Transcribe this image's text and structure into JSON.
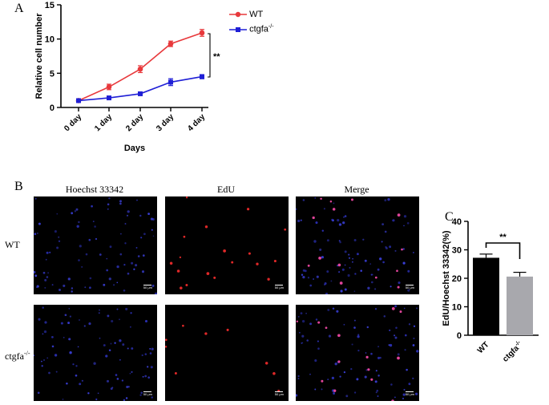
{
  "panel_a": {
    "letter": "A",
    "ylabel": "Relative cell number",
    "xlabel": "Days",
    "significance": "**",
    "legend": [
      {
        "label": "WT",
        "superscript": "",
        "color": "#e8393c",
        "marker": "circle"
      },
      {
        "label": "ctgfa",
        "superscript": "-/-",
        "color": "#1f1fd6",
        "marker": "square"
      }
    ]
  },
  "panel_b": {
    "letter": "B",
    "columns": [
      "Hoechst 33342",
      "EdU",
      "Merge"
    ],
    "rows": [
      {
        "label": "WT",
        "superscript": ""
      },
      {
        "label": "ctgfa",
        "superscript": "-/-"
      }
    ],
    "scale_text": "50 μm"
  },
  "panel_c": {
    "letter": "C",
    "ylabel": "EdU/Hoechst 33342(%)",
    "significance": "**",
    "categories": [
      {
        "label": "WT",
        "superscript": ""
      },
      {
        "label": "ctgfa",
        "superscript": "-/-"
      }
    ]
  },
  "chart_data": [
    {
      "type": "line",
      "x": [
        "0 day",
        "1 day",
        "2 day",
        "3 day",
        "4 day"
      ],
      "ylim": [
        0,
        15
      ],
      "yticks": [
        0,
        5,
        10,
        15
      ],
      "series": [
        {
          "name": "WT",
          "values": [
            1.0,
            3.0,
            5.6,
            9.3,
            10.9
          ],
          "errors": [
            0.2,
            0.4,
            0.5,
            0.4,
            0.5
          ],
          "color": "#e8393c"
        },
        {
          "name": "ctgfa-/-",
          "values": [
            1.0,
            1.4,
            2.0,
            3.7,
            4.5
          ],
          "errors": [
            0.15,
            0.2,
            0.2,
            0.5,
            0.3
          ],
          "color": "#1f1fd6"
        }
      ],
      "xlabel": "Days",
      "ylabel": "Relative cell number",
      "grid": false,
      "legend": "top-right"
    },
    {
      "type": "bar",
      "categories": [
        "WT",
        "ctgfa-/-"
      ],
      "values": [
        27.2,
        20.6
      ],
      "errors": [
        1.3,
        1.5
      ],
      "colors": [
        "#000000",
        "#a8a8ad"
      ],
      "ylim": [
        0,
        40
      ],
      "yticks": [
        0,
        10,
        20,
        30,
        40
      ],
      "ylabel": "EdU/Hoechst 33342(%)",
      "grid": false
    }
  ]
}
